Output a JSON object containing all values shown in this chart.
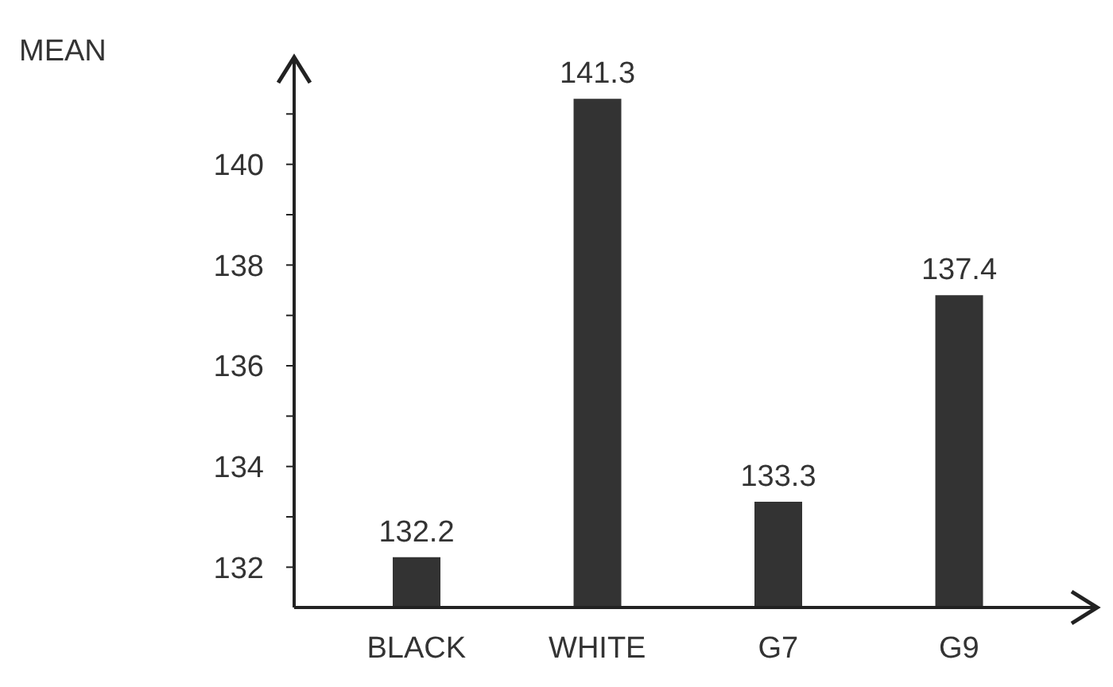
{
  "chart_data": {
    "type": "bar",
    "ylabel": "MEAN",
    "categories": [
      "BLACK",
      "WHITE",
      "G7",
      "G9"
    ],
    "values": [
      132.2,
      141.3,
      133.3,
      137.4
    ],
    "color": "#333333",
    "ylim": [
      131.2,
      142
    ],
    "yticks": [
      132,
      {
        "value": 133,
        "label": null
      },
      134,
      {
        "value": 135,
        "label": null
      },
      136,
      {
        "value": 137,
        "label": null
      },
      138,
      {
        "value": 139,
        "label": null
      },
      140,
      {
        "value": 141,
        "label": null
      }
    ],
    "data_labels": true
  }
}
